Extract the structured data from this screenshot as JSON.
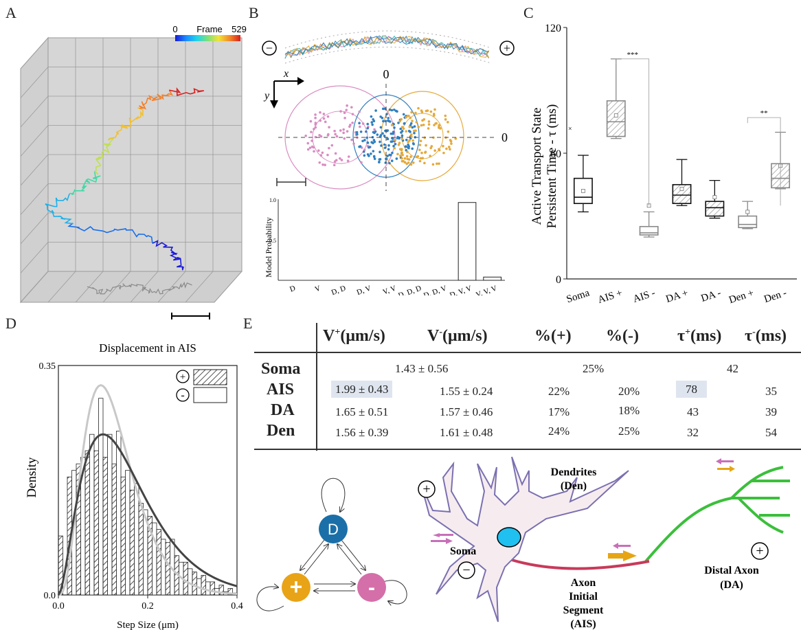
{
  "panels": {
    "a": "A",
    "b": "B",
    "c": "C",
    "d": "D",
    "e": "E"
  },
  "panel_a": {
    "colorbar": {
      "min_label": "0",
      "title": "Frame",
      "max_label": "529",
      "gradient": [
        "#1a1ad8",
        "#1a8cff",
        "#21d4e8",
        "#7fe07a",
        "#f2e33a",
        "#f28a2a",
        "#d81e1e"
      ]
    },
    "trajectory_colors": [
      "#1a1ad8",
      "#1a6fe8",
      "#1fb0e8",
      "#3fd9a4",
      "#c0e050",
      "#f2c030",
      "#f2802a",
      "#d81e1e"
    ],
    "shadow_color": "#8a8a8a"
  },
  "panel_b": {
    "minus_symbol": "−",
    "plus_symbol": "+",
    "x_axis_label": "x",
    "y_axis_label": "y",
    "zero_top": "0",
    "zero_right": "0",
    "colors": {
      "pink": "#d98cc0",
      "blue": "#2f7fc0",
      "gold": "#e5a93a",
      "orange": "#e5a93a"
    },
    "model_ylabel": "Model Probability",
    "model_ticks": [
      "1.0",
      "0.5"
    ]
  },
  "chart_data": [
    {
      "type": "bar",
      "panel": "B-bottom",
      "ylabel": "Model Probability",
      "ylim": [
        0,
        1.0
      ],
      "yticks": [
        "1.0",
        "0.5"
      ],
      "categories": [
        "D",
        "V",
        "D, D",
        "D, V",
        "V, V",
        "D, D, D",
        "D, D, V",
        "D, V, V",
        "V, V, V"
      ],
      "values": [
        0,
        0,
        0,
        0,
        0,
        0,
        0,
        0.96,
        0.04
      ]
    },
    {
      "type": "box",
      "panel": "C",
      "ylabel_line1": "Active Transport State",
      "ylabel_line2": "Persistent Time - τ (ms)",
      "ylim": [
        0,
        120
      ],
      "yticks": [
        "0",
        "60",
        "120"
      ],
      "categories": [
        "Soma",
        "AIS +",
        "AIS -",
        "DA +",
        "DA -",
        "Den +",
        "Den -"
      ],
      "hatched": [
        false,
        true,
        false,
        true,
        true,
        false,
        true
      ],
      "series": [
        {
          "name": "Soma",
          "whisker_low": 32,
          "q1": 36,
          "median": 39,
          "q3": 48,
          "whisker_high": 59,
          "mean": 42,
          "outlier": 72
        },
        {
          "name": "AIS +",
          "whisker_low": 67,
          "q1": 68,
          "median": 75,
          "q3": 85,
          "whisker_high": 105,
          "mean": 78
        },
        {
          "name": "AIS -",
          "whisker_low": 20,
          "q1": 21,
          "median": 22,
          "q3": 25,
          "whisker_high": 32,
          "mean": 35
        },
        {
          "name": "DA +",
          "whisker_low": 35,
          "q1": 36,
          "median": 40,
          "q3": 45,
          "whisker_high": 57,
          "mean": 43
        },
        {
          "name": "DA -",
          "whisker_low": 29,
          "q1": 30,
          "median": 34,
          "q3": 37,
          "whisker_high": 47,
          "mean": 39
        },
        {
          "name": "Den +",
          "whisker_low": 24,
          "q1": 24.5,
          "median": 26,
          "q3": 30,
          "whisker_high": 37,
          "mean": 32
        },
        {
          "name": "Den -",
          "whisker_low": 43,
          "q1": 43.5,
          "median": 48,
          "q3": 55,
          "whisker_high": 70,
          "mean": 54
        }
      ],
      "annotations": [
        {
          "between": [
            "AIS +",
            "AIS -"
          ],
          "text": "***"
        },
        {
          "between": [
            "Den +",
            "Den -"
          ],
          "text": "**"
        }
      ]
    },
    {
      "type": "bar",
      "panel": "D",
      "title": "Displacement in AIS",
      "xlabel": "Step Size (μm)",
      "ylabel": "Density",
      "xlim": [
        0,
        0.4
      ],
      "ylim": [
        0,
        0.35
      ],
      "xticks": [
        "0.0",
        "0.2",
        "0.4"
      ],
      "yticks": [
        "0.0",
        "0.35"
      ],
      "bin_edges": [
        0,
        0.02,
        0.04,
        0.06,
        0.08,
        0.1,
        0.12,
        0.14,
        0.16,
        0.18,
        0.2,
        0.22,
        0.24,
        0.26,
        0.28,
        0.3,
        0.32,
        0.34,
        0.36,
        0.38,
        0.4
      ],
      "series": [
        {
          "name": "+",
          "hatched": true,
          "values": [
            0.09,
            0.18,
            0.2,
            0.22,
            0.22,
            0.21,
            0.2,
            0.18,
            0.16,
            0.14,
            0.12,
            0.1,
            0.08,
            0.06,
            0.05,
            0.035,
            0.03,
            0.02,
            0.015,
            0.01
          ]
        },
        {
          "name": "-",
          "hatched": false,
          "values": [
            0.0,
            0.19,
            0.21,
            0.245,
            0.3,
            0.245,
            0.25,
            0.19,
            0.17,
            0.13,
            0.11,
            0.085,
            0.085,
            0.05,
            0.04,
            0.025,
            0.02,
            0.01,
            0.005,
            0.003
          ]
        }
      ],
      "legend": [
        "+",
        "-"
      ]
    }
  ],
  "table": {
    "headers": [
      {
        "base": "V",
        "sup": "+",
        "unit": "(μm/s)"
      },
      {
        "base": "V",
        "sup": "-",
        "unit": "(μm/s)"
      },
      {
        "base": "%(+)",
        "sup": "",
        "unit": ""
      },
      {
        "base": "%(-)",
        "sup": "",
        "unit": ""
      },
      {
        "base": "τ",
        "sup": "+",
        "unit": "(ms)"
      },
      {
        "base": "τ",
        "sup": "-",
        "unit": "(ms)"
      }
    ],
    "rows": [
      {
        "label": "Soma",
        "merged": true,
        "v": "1.43 ± 0.56",
        "pct": "25%",
        "tau": "42"
      },
      {
        "label": "AIS",
        "cells": [
          "1.99 ± 0.43",
          "1.55 ± 0.24",
          "22%",
          "20%",
          "78",
          "35"
        ]
      },
      {
        "label": "DA",
        "cells": [
          "1.65 ± 0.51",
          "1.57 ± 0.46",
          "17%",
          "18%",
          "43",
          "39"
        ]
      },
      {
        "label": "Den",
        "cells": [
          "1.56 ± 0.39",
          "1.61 ± 0.48",
          "24%",
          "25%",
          "32",
          "54"
        ]
      }
    ]
  },
  "state_diagram": {
    "d_label": "D",
    "plus_label": "+",
    "minus_label": "-",
    "colors": {
      "d": "#1a6fa8",
      "plus": "#e8a317",
      "minus": "#d46fa9"
    }
  },
  "neuron": {
    "dendrites": "Dendrites",
    "den_abbr": "(Den)",
    "soma": "Soma",
    "axon_l1": "Axon",
    "axon_l2": "Initial",
    "axon_l3": "Segment",
    "axon_l4": "(AIS)",
    "distal_l1": "Distal Axon",
    "distal_l2": "(DA)",
    "plus": "+",
    "minus": "−",
    "colors": {
      "body_fill": "#f6ecf0",
      "body_stroke": "#7a70b0",
      "nucleus": "#20c0f0",
      "axon": "#c83a5a",
      "distal": "#3bbf3b",
      "arrow_gold": "#e6a514",
      "arrow_pink": "#c86fb8"
    }
  }
}
